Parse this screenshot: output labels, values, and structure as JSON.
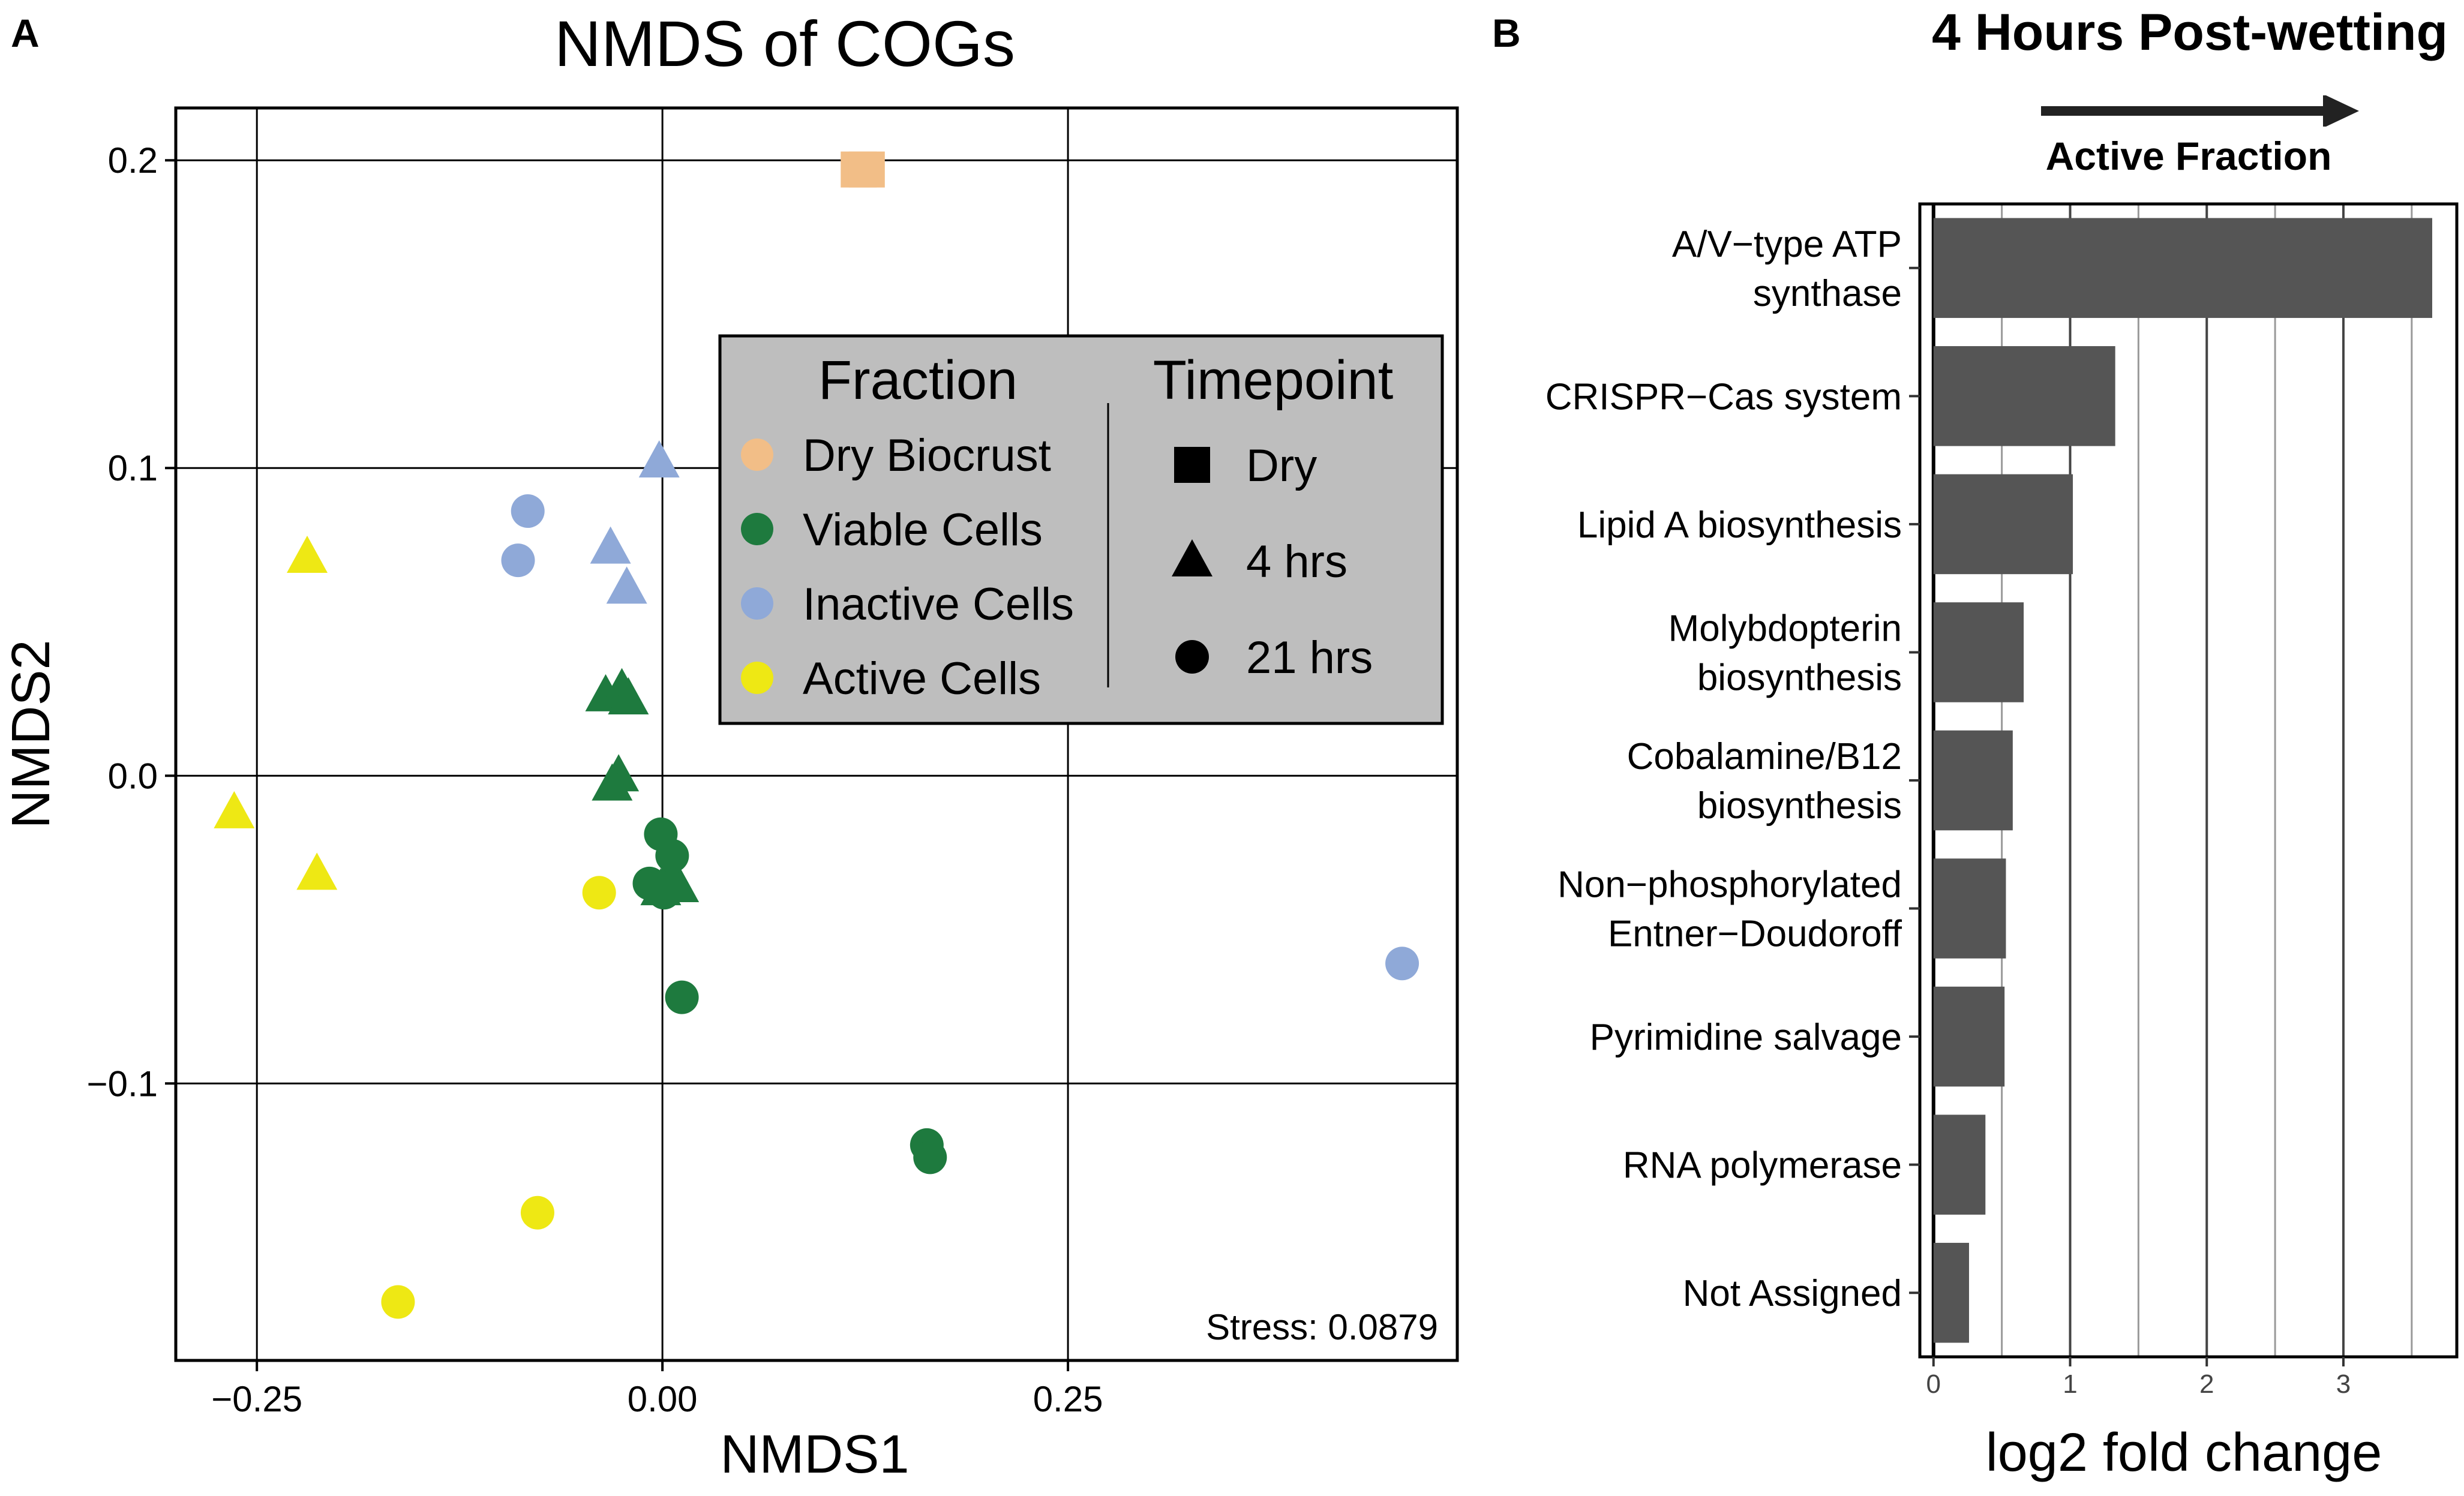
{
  "panel_a": {
    "label": "A",
    "legend": {
      "fraction_title": "Fraction",
      "timepoint_title": "Timepoint",
      "fractions": [
        {
          "name": "Dry Biocrust",
          "color": "#F2BE87"
        },
        {
          "name": "Viable Cells",
          "color": "#1E7A3E"
        },
        {
          "name": "Inactive Cells",
          "color": "#8FA9D8"
        },
        {
          "name": "Active Cells",
          "color": "#EEE814"
        }
      ],
      "timepoints": [
        {
          "name": "Dry",
          "shape": "square"
        },
        {
          "name": "4 hrs",
          "shape": "triangle"
        },
        {
          "name": "21 hrs",
          "shape": "circle"
        }
      ]
    },
    "stress_label": "Stress: 0.0879"
  },
  "panel_b": {
    "label": "B",
    "direction_label": "Active Fraction"
  },
  "chart_data": [
    {
      "type": "scatter",
      "title": "NMDS of COGs",
      "xlabel": "NMDS1",
      "ylabel": "NMDS2",
      "xlim": [
        -0.3,
        0.49
      ],
      "ylim": [
        -0.19,
        0.217
      ],
      "xticks": [
        -0.25,
        0.0,
        0.25
      ],
      "xtick_labels": [
        "−0.25",
        "0.00",
        "0.25"
      ],
      "yticks": [
        -0.1,
        0.0,
        0.1,
        0.2
      ],
      "ytick_labels": [
        "−0.1",
        "0.0",
        "0.1",
        "0.2"
      ],
      "grid": true,
      "legend_position": "right-middle",
      "points": [
        {
          "x": 0.121,
          "y": 0.197,
          "fraction": "Dry Biocrust",
          "timepoint": "Dry"
        },
        {
          "x": 0.126,
          "y": 0.197,
          "fraction": "Dry Biocrust",
          "timepoint": "Dry"
        },
        {
          "x": -0.002,
          "y": 0.102,
          "fraction": "Inactive Cells",
          "timepoint": "4 hrs"
        },
        {
          "x": -0.032,
          "y": 0.074,
          "fraction": "Inactive Cells",
          "timepoint": "4 hrs"
        },
        {
          "x": -0.022,
          "y": 0.061,
          "fraction": "Inactive Cells",
          "timepoint": "4 hrs"
        },
        {
          "x": -0.083,
          "y": 0.086,
          "fraction": "Inactive Cells",
          "timepoint": "21 hrs"
        },
        {
          "x": -0.089,
          "y": 0.07,
          "fraction": "Inactive Cells",
          "timepoint": "21 hrs"
        },
        {
          "x": 0.456,
          "y": -0.061,
          "fraction": "Inactive Cells",
          "timepoint": "21 hrs"
        },
        {
          "x": -0.035,
          "y": 0.026,
          "fraction": "Viable Cells",
          "timepoint": "4 hrs"
        },
        {
          "x": -0.025,
          "y": 0.028,
          "fraction": "Viable Cells",
          "timepoint": "4 hrs"
        },
        {
          "x": -0.021,
          "y": 0.025,
          "fraction": "Viable Cells",
          "timepoint": "4 hrs"
        },
        {
          "x": -0.027,
          "y": 0.0,
          "fraction": "Viable Cells",
          "timepoint": "4 hrs"
        },
        {
          "x": -0.031,
          "y": -0.003,
          "fraction": "Viable Cells",
          "timepoint": "4 hrs"
        },
        {
          "x": -0.001,
          "y": -0.037,
          "fraction": "Viable Cells",
          "timepoint": "4 hrs"
        },
        {
          "x": 0.01,
          "y": -0.036,
          "fraction": "Viable Cells",
          "timepoint": "4 hrs"
        },
        {
          "x": 0.004,
          "y": -0.033,
          "fraction": "Viable Cells",
          "timepoint": "4 hrs"
        },
        {
          "x": -0.001,
          "y": -0.019,
          "fraction": "Viable Cells",
          "timepoint": "21 hrs"
        },
        {
          "x": 0.006,
          "y": -0.026,
          "fraction": "Viable Cells",
          "timepoint": "21 hrs"
        },
        {
          "x": -0.008,
          "y": -0.035,
          "fraction": "Viable Cells",
          "timepoint": "21 hrs"
        },
        {
          "x": 0.001,
          "y": -0.038,
          "fraction": "Viable Cells",
          "timepoint": "21 hrs"
        },
        {
          "x": 0.012,
          "y": -0.072,
          "fraction": "Viable Cells",
          "timepoint": "21 hrs"
        },
        {
          "x": 0.163,
          "y": -0.12,
          "fraction": "Viable Cells",
          "timepoint": "21 hrs"
        },
        {
          "x": 0.165,
          "y": -0.124,
          "fraction": "Viable Cells",
          "timepoint": "21 hrs"
        },
        {
          "x": -0.219,
          "y": 0.071,
          "fraction": "Active Cells",
          "timepoint": "4 hrs"
        },
        {
          "x": -0.264,
          "y": -0.012,
          "fraction": "Active Cells",
          "timepoint": "4 hrs"
        },
        {
          "x": -0.213,
          "y": -0.032,
          "fraction": "Active Cells",
          "timepoint": "4 hrs"
        },
        {
          "x": -0.039,
          "y": -0.038,
          "fraction": "Active Cells",
          "timepoint": "21 hrs"
        },
        {
          "x": -0.077,
          "y": -0.142,
          "fraction": "Active Cells",
          "timepoint": "21 hrs"
        },
        {
          "x": -0.163,
          "y": -0.171,
          "fraction": "Active Cells",
          "timepoint": "21 hrs"
        }
      ]
    },
    {
      "type": "bar",
      "orientation": "horizontal",
      "title": "4 Hours Post-wetting",
      "xlabel": "log2 fold change",
      "ylabel": "",
      "xlim": [
        -0.1,
        3.83
      ],
      "xticks": [
        0,
        1,
        2,
        3
      ],
      "xtick_labels": [
        "0",
        "1",
        "2",
        "3"
      ],
      "bar_color": "#555555",
      "grid": true,
      "categories": [
        [
          "A/V−type ATP",
          "synthase"
        ],
        [
          "CRISPR−Cas system"
        ],
        [
          "Lipid A biosynthesis"
        ],
        [
          "Molybdopterin",
          "biosynthesis"
        ],
        [
          "Cobalamine/B12",
          "biosynthesis"
        ],
        [
          "Non−phosphorylated",
          "Entner−Doudoroff"
        ],
        [
          "Pyrimidine salvage"
        ],
        [
          "RNA polymerase"
        ],
        [
          "Not Assigned"
        ]
      ],
      "values": [
        3.65,
        1.33,
        1.02,
        0.66,
        0.58,
        0.53,
        0.52,
        0.38,
        0.26
      ]
    }
  ]
}
